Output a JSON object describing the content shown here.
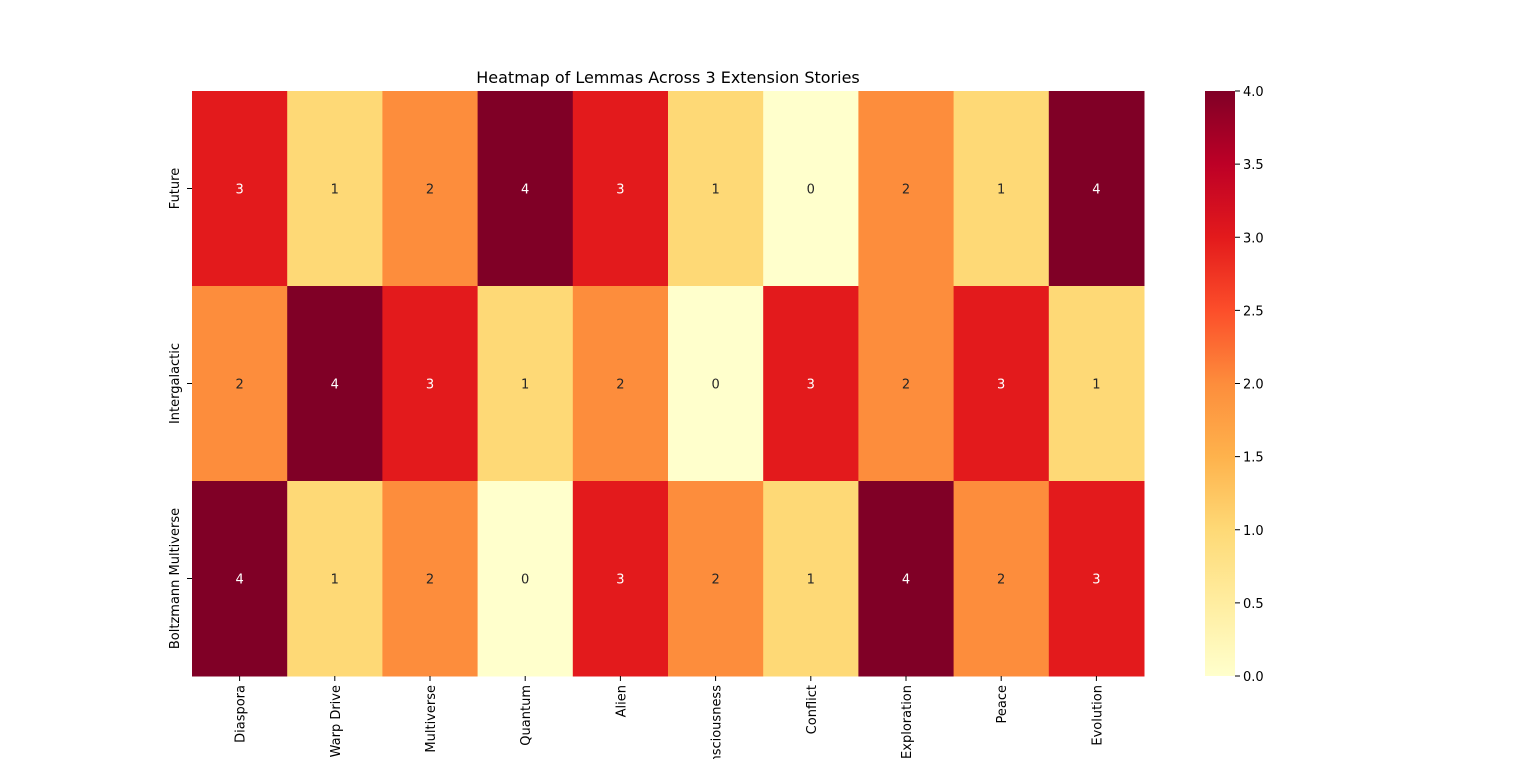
{
  "chart_data": {
    "type": "heatmap",
    "title": "Heatmap of Lemmas Across 3 Extension Stories",
    "xlabel": "",
    "ylabel": "",
    "x_categories": [
      "Diaspora",
      "Warp Drive",
      "Multiverse",
      "Quantum",
      "Alien",
      "Consciousness",
      "Conflict",
      "Exploration",
      "Peace",
      "Evolution"
    ],
    "y_categories": [
      "Future",
      "Intergalactic",
      "Boltzmann Multiverse"
    ],
    "values": [
      [
        3,
        1,
        2,
        4,
        3,
        1,
        0,
        2,
        1,
        4
      ],
      [
        2,
        4,
        3,
        1,
        2,
        0,
        3,
        2,
        3,
        1
      ],
      [
        4,
        1,
        2,
        0,
        3,
        2,
        1,
        4,
        2,
        3
      ]
    ],
    "colormap": "YlOrRd",
    "vmin": 0,
    "vmax": 4,
    "annotations": true,
    "colorbar": {
      "ticks": [
        "0.0",
        "0.5",
        "1.0",
        "1.5",
        "2.0",
        "2.5",
        "3.0",
        "3.5",
        "4.0"
      ]
    },
    "grid": false,
    "legend": "colorbar-right"
  }
}
